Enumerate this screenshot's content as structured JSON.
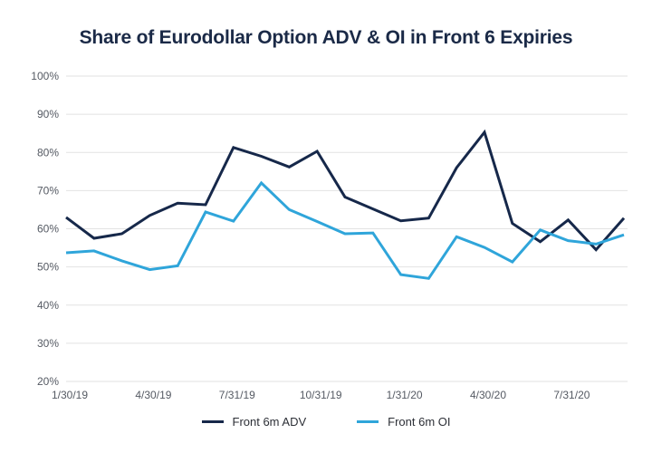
{
  "chart_data": {
    "type": "line",
    "title": "Share of Eurodollar Option ADV & OI in Front 6 Expiries",
    "xlabel": "",
    "ylabel": "",
    "ylim": [
      20,
      100
    ],
    "yticks": [
      "20%",
      "30%",
      "40%",
      "50%",
      "60%",
      "70%",
      "80%",
      "90%",
      "100%"
    ],
    "ytick_values": [
      20,
      30,
      40,
      50,
      60,
      70,
      80,
      90,
      100
    ],
    "x": [
      "1/30/19",
      "2/28/19",
      "3/29/19",
      "4/30/19",
      "5/31/19",
      "6/28/19",
      "7/31/19",
      "8/30/19",
      "9/30/19",
      "10/31/19",
      "11/29/19",
      "12/31/19",
      "1/31/20",
      "2/28/20",
      "3/31/20",
      "4/30/20",
      "5/29/20",
      "6/30/20",
      "7/31/20",
      "8/31/20",
      "9/30/20"
    ],
    "xtick_labels": [
      "1/30/19",
      "4/30/19",
      "7/31/19",
      "10/31/19",
      "1/31/20",
      "4/30/20",
      "7/31/20"
    ],
    "xtick_indices": [
      0,
      3,
      6,
      9,
      12,
      15,
      18
    ],
    "grid": true,
    "legend_position": "bottom-center",
    "series": [
      {
        "name": "Front 6m ADV",
        "color": "#16284a",
        "values": [
          63.0,
          57.5,
          58.7,
          63.5,
          66.7,
          66.3,
          81.3,
          79.0,
          76.2,
          80.3,
          68.3,
          65.2,
          62.1,
          62.8,
          76.0,
          85.3,
          61.4,
          56.6,
          62.3,
          54.5,
          62.8
        ]
      },
      {
        "name": "Front 6m OI",
        "color": "#2fa5da",
        "values": [
          53.7,
          54.2,
          51.6,
          49.3,
          50.3,
          64.4,
          62.0,
          72.0,
          65.0,
          61.9,
          58.7,
          58.9,
          48.0,
          47.0,
          57.9,
          55.1,
          51.3,
          59.7,
          56.9,
          56.0,
          58.4
        ]
      }
    ]
  }
}
